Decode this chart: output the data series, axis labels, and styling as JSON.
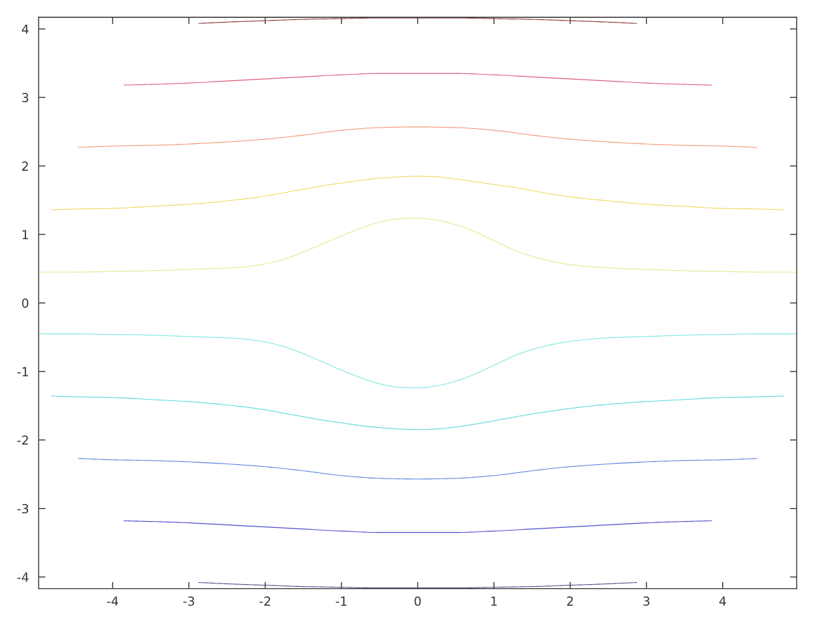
{
  "chart_data": {
    "type": "line",
    "line_style": "solid",
    "xlim": [
      -4.97,
      4.97
    ],
    "ylim": [
      -4.17,
      4.17
    ],
    "xticks": [
      -4,
      -3,
      -2,
      -1,
      0,
      1,
      2,
      3,
      4
    ],
    "yticks": [
      -4,
      -3,
      -2,
      -1,
      0,
      1,
      2,
      3,
      4
    ],
    "series": [
      {
        "color": "#8b3a3a",
        "x": [
          -2.87,
          -2.5,
          -2,
          -1.5,
          -1,
          -0.5,
          0,
          0.5,
          1,
          1.5,
          2,
          2.5,
          2.87
        ],
        "values": [
          4.08,
          4.1,
          4.12,
          4.14,
          4.15,
          4.16,
          4.16,
          4.16,
          4.15,
          4.14,
          4.12,
          4.1,
          4.08
        ]
      },
      {
        "color": "#e0607a",
        "x": [
          -3.85,
          -3.5,
          -3,
          -2.5,
          -2,
          -1.5,
          -1,
          -0.5,
          0,
          0.5,
          1,
          1.5,
          2,
          2.5,
          3,
          3.5,
          3.85
        ],
        "values": [
          3.18,
          3.19,
          3.21,
          3.24,
          3.27,
          3.3,
          3.33,
          3.35,
          3.35,
          3.35,
          3.33,
          3.3,
          3.27,
          3.24,
          3.21,
          3.19,
          3.18
        ]
      },
      {
        "color": "#f09a78",
        "x": [
          -4.45,
          -4,
          -3.5,
          -3,
          -2.5,
          -2,
          -1.5,
          -1,
          -0.5,
          0,
          0.5,
          1,
          1.5,
          2,
          2.5,
          3,
          3.5,
          4,
          4.45
        ],
        "values": [
          2.27,
          2.29,
          2.3,
          2.32,
          2.35,
          2.39,
          2.45,
          2.52,
          2.56,
          2.57,
          2.56,
          2.52,
          2.45,
          2.39,
          2.35,
          2.32,
          2.3,
          2.29,
          2.27
        ]
      },
      {
        "color": "#f0d860",
        "x": [
          -4.8,
          -4.5,
          -4,
          -3.5,
          -3,
          -2.5,
          -2,
          -1.75,
          -1.5,
          -1.25,
          -1,
          -0.75,
          -0.5,
          -0.25,
          0,
          0.25,
          0.5,
          0.75,
          1,
          1.25,
          1.5,
          1.75,
          2,
          2.5,
          3,
          3.5,
          4,
          4.5,
          4.8
        ],
        "values": [
          1.36,
          1.37,
          1.38,
          1.41,
          1.44,
          1.49,
          1.56,
          1.61,
          1.66,
          1.71,
          1.75,
          1.79,
          1.82,
          1.84,
          1.85,
          1.84,
          1.81,
          1.77,
          1.73,
          1.69,
          1.64,
          1.59,
          1.55,
          1.49,
          1.44,
          1.41,
          1.38,
          1.37,
          1.36
        ]
      },
      {
        "color": "#d8f090",
        "x": [
          -4.97,
          -4.5,
          -4,
          -3.5,
          -3,
          -2.5,
          -2.25,
          -2,
          -1.75,
          -1.5,
          -1.25,
          -1,
          -0.75,
          -0.5,
          -0.25,
          0,
          0.25,
          0.5,
          0.75,
          1,
          1.25,
          1.5,
          1.75,
          2,
          2.25,
          2.5,
          3,
          3.5,
          4,
          4.5,
          4.97
        ],
        "values": [
          0.45,
          0.45,
          0.46,
          0.47,
          0.49,
          0.51,
          0.53,
          0.57,
          0.64,
          0.74,
          0.86,
          0.98,
          1.09,
          1.18,
          1.23,
          1.24,
          1.21,
          1.14,
          1.04,
          0.91,
          0.78,
          0.68,
          0.61,
          0.56,
          0.53,
          0.51,
          0.49,
          0.47,
          0.46,
          0.45,
          0.45
        ]
      },
      {
        "color": "#80e8e0",
        "x": [
          -4.97,
          -4.5,
          -4,
          -3.5,
          -3,
          -2.5,
          -2.25,
          -2,
          -1.75,
          -1.5,
          -1.25,
          -1,
          -0.75,
          -0.5,
          -0.25,
          0,
          0.25,
          0.5,
          0.75,
          1,
          1.25,
          1.5,
          1.75,
          2,
          2.25,
          2.5,
          3,
          3.5,
          4,
          4.5,
          4.97
        ],
        "values": [
          -0.45,
          -0.45,
          -0.46,
          -0.47,
          -0.49,
          -0.51,
          -0.53,
          -0.57,
          -0.64,
          -0.74,
          -0.86,
          -0.98,
          -1.09,
          -1.18,
          -1.23,
          -1.24,
          -1.21,
          -1.14,
          -1.04,
          -0.91,
          -0.78,
          -0.68,
          -0.61,
          -0.56,
          -0.53,
          -0.51,
          -0.49,
          -0.47,
          -0.46,
          -0.45,
          -0.45
        ]
      },
      {
        "color": "#60d8dc",
        "x": [
          -4.8,
          -4.5,
          -4,
          -3.5,
          -3,
          -2.5,
          -2,
          -1.75,
          -1.5,
          -1.25,
          -1,
          -0.75,
          -0.5,
          -0.25,
          0,
          0.25,
          0.5,
          0.75,
          1,
          1.25,
          1.5,
          1.75,
          2,
          2.5,
          3,
          3.5,
          4,
          4.5,
          4.8
        ],
        "values": [
          -1.36,
          -1.37,
          -1.38,
          -1.41,
          -1.44,
          -1.49,
          -1.56,
          -1.61,
          -1.66,
          -1.71,
          -1.75,
          -1.79,
          -1.82,
          -1.84,
          -1.85,
          -1.84,
          -1.81,
          -1.77,
          -1.72,
          -1.67,
          -1.62,
          -1.58,
          -1.54,
          -1.48,
          -1.44,
          -1.41,
          -1.38,
          -1.37,
          -1.36
        ]
      },
      {
        "color": "#6088e0",
        "x": [
          -4.45,
          -4,
          -3.5,
          -3,
          -2.5,
          -2,
          -1.5,
          -1,
          -0.5,
          0,
          0.5,
          1,
          1.5,
          2,
          2.5,
          3,
          3.5,
          4,
          4.45
        ],
        "values": [
          -2.27,
          -2.29,
          -2.3,
          -2.32,
          -2.35,
          -2.39,
          -2.45,
          -2.52,
          -2.56,
          -2.57,
          -2.56,
          -2.52,
          -2.45,
          -2.39,
          -2.35,
          -2.32,
          -2.3,
          -2.29,
          -2.27
        ]
      },
      {
        "color": "#5050d0",
        "x": [
          -3.85,
          -3.5,
          -3,
          -2.5,
          -2,
          -1.5,
          -1,
          -0.5,
          0,
          0.5,
          1,
          1.5,
          2,
          2.5,
          3,
          3.5,
          3.85
        ],
        "values": [
          -3.18,
          -3.19,
          -3.21,
          -3.24,
          -3.27,
          -3.3,
          -3.33,
          -3.35,
          -3.35,
          -3.35,
          -3.33,
          -3.3,
          -3.27,
          -3.24,
          -3.21,
          -3.19,
          -3.18
        ]
      },
      {
        "color": "#505088",
        "x": [
          -2.87,
          -2.5,
          -2,
          -1.5,
          -1,
          -0.5,
          0,
          0.5,
          1,
          1.5,
          2,
          2.5,
          2.87
        ],
        "values": [
          -4.08,
          -4.1,
          -4.12,
          -4.14,
          -4.15,
          -4.16,
          -4.16,
          -4.16,
          -4.15,
          -4.14,
          -4.12,
          -4.1,
          -4.08
        ]
      }
    ]
  }
}
